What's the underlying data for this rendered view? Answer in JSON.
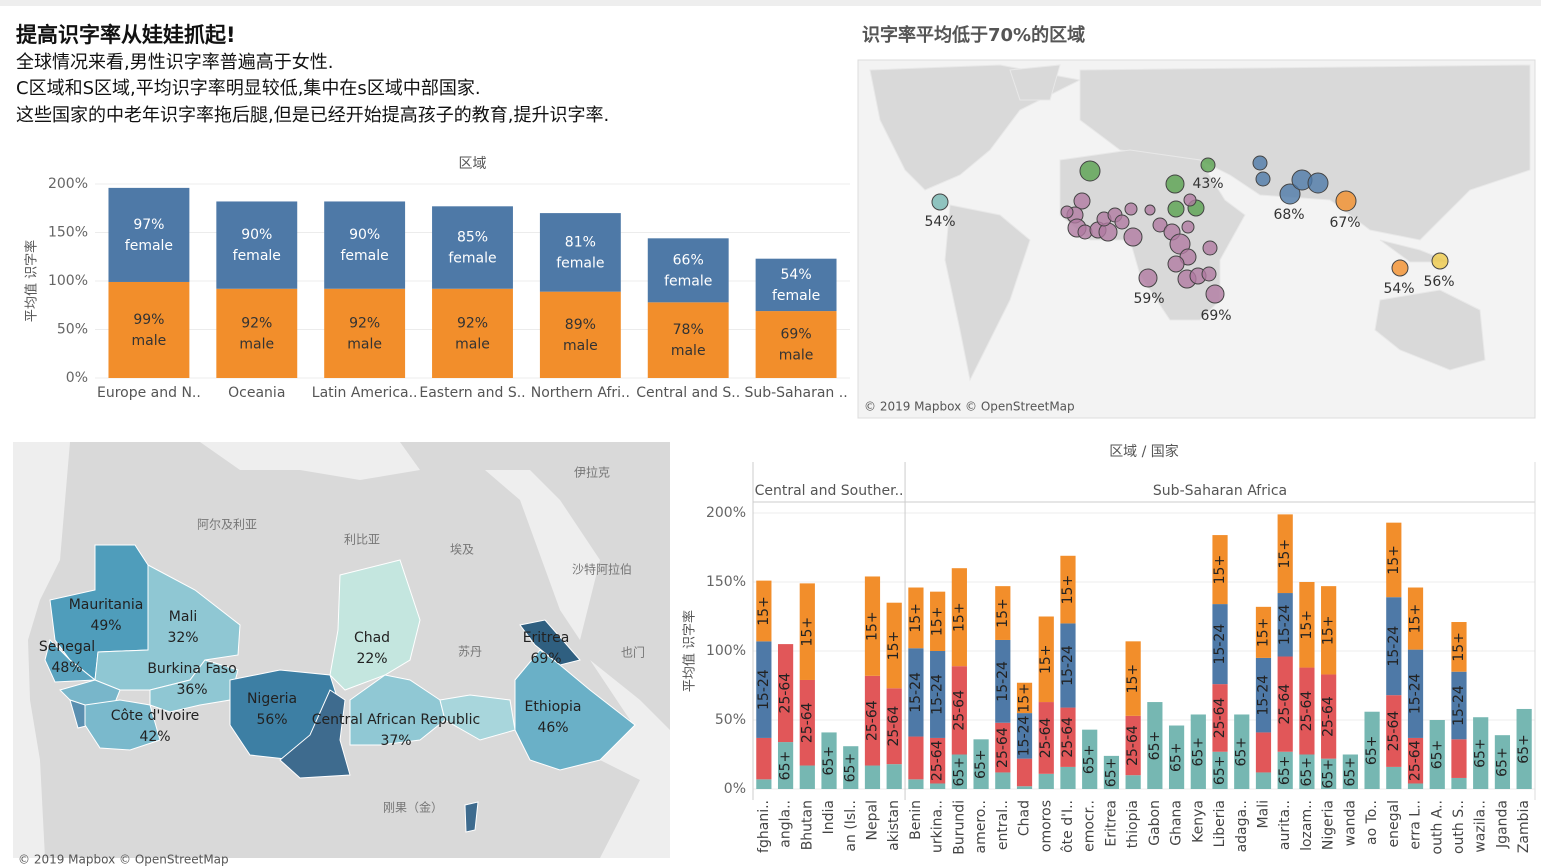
{
  "header": {
    "title": "提高识字率从娃娃抓起!",
    "lines": [
      "全球情况来看,男性识字率普遍高于女性.",
      "C区域和S区域,平均识字率明显较低,集中在s区域中部国家.",
      "这些国家的中老年识字率拖后腿,但是已经开始提高孩子的教育,提升识字率."
    ]
  },
  "chart_data": [
    {
      "type": "bar",
      "stacked": true,
      "header": "区域",
      "y_label": "平均值 识字率",
      "categories": [
        "Europe and N..",
        "Oceania",
        "Latin America..",
        "Eastern and S..",
        "Northern Afri..",
        "Central and S..",
        "Sub-Saharan .."
      ],
      "series": [
        {
          "name": "male",
          "color": "#f28e2b",
          "label_color": "#333333",
          "values": [
            99,
            92,
            92,
            92,
            89,
            78,
            69
          ],
          "value_labels": [
            "99%",
            "92%",
            "92%",
            "92%",
            "89%",
            "78%",
            "69%"
          ]
        },
        {
          "name": "female",
          "color": "#4e79a7",
          "label_color": "#ffffff",
          "values": [
            97,
            90,
            90,
            85,
            81,
            66,
            54
          ],
          "value_labels": [
            "97%",
            "90%",
            "90%",
            "85%",
            "81%",
            "66%",
            "54%"
          ]
        }
      ],
      "ylim": [
        0,
        200
      ],
      "yticks": [
        {
          "value": 0,
          "label": "0%"
        },
        {
          "value": 50,
          "label": "50%"
        },
        {
          "value": 100,
          "label": "100%"
        },
        {
          "value": 150,
          "label": "150%"
        },
        {
          "value": 200,
          "label": "200%"
        }
      ],
      "grid": true
    },
    {
      "type": "bar",
      "stacked": true,
      "header": "区域 / 国家",
      "y_label": "平均值 识字率",
      "groups": [
        {
          "name": "Central and Souther..",
          "categories": [
            "fghani..",
            "angla..",
            "Bhutan",
            "India",
            "an (Isl..",
            "Nepal",
            "akistan"
          ]
        },
        {
          "name": "Sub-Saharan Africa",
          "categories": [
            "Benin",
            "urkina..",
            "Burundi",
            "amero..",
            "entral..",
            "Chad",
            "omoros",
            "ôte d'I..",
            "emocr..",
            "Eritrea",
            "thiopia",
            "Gabon",
            "Ghana",
            "Kenya",
            "Liberia",
            "adaga..",
            "Mali",
            "aurita..",
            "lozam..",
            "Nigeria",
            "wanda",
            "ao To..",
            "enegal",
            "erra L..",
            "outh A..",
            "outh S..",
            "wazila..",
            "Jganda",
            "Zambia"
          ]
        }
      ],
      "series": [
        {
          "name": "65+",
          "color": "#76b7b2",
          "values": [
            7,
            34,
            17,
            41,
            31,
            17,
            18,
            7,
            4,
            25,
            36,
            12,
            2,
            11,
            16,
            43,
            24,
            10,
            63,
            46,
            54,
            27,
            54,
            12,
            27,
            25,
            22,
            25,
            56,
            16,
            4,
            50,
            8,
            52,
            39,
            58
          ]
        },
        {
          "name": "25-64",
          "color": "#e15759",
          "values": [
            30,
            71,
            62,
            null,
            null,
            65,
            55,
            31,
            33,
            64,
            null,
            36,
            20,
            52,
            43,
            null,
            null,
            43,
            null,
            null,
            null,
            49,
            null,
            29,
            69,
            63,
            61,
            null,
            null,
            52,
            33,
            null,
            28,
            null,
            null,
            null
          ]
        },
        {
          "name": "15-24",
          "color": "#4e79a7",
          "values": [
            70,
            null,
            null,
            null,
            null,
            null,
            null,
            64,
            63,
            null,
            null,
            60,
            33,
            null,
            61,
            null,
            null,
            null,
            null,
            null,
            null,
            58,
            null,
            54,
            46,
            null,
            null,
            null,
            null,
            71,
            64,
            null,
            49,
            null,
            null,
            null
          ]
        },
        {
          "name": "15+",
          "color": "#f28e2b",
          "values": [
            44,
            null,
            70,
            null,
            null,
            72,
            62,
            44,
            43,
            71,
            null,
            39,
            22,
            62,
            49,
            null,
            null,
            54,
            null,
            null,
            null,
            50,
            null,
            37,
            57,
            62,
            64,
            null,
            null,
            54,
            45,
            null,
            36,
            null,
            null,
            null
          ]
        }
      ],
      "ylim": [
        0,
        200
      ],
      "yticks": [
        {
          "value": 0,
          "label": "0%"
        },
        {
          "value": 50,
          "label": "50%"
        },
        {
          "value": 100,
          "label": "100%"
        },
        {
          "value": 150,
          "label": "150%"
        },
        {
          "value": 200,
          "label": "200%"
        }
      ],
      "grid": true
    }
  ],
  "region_map": {
    "title": "识字率平均低于70%的区域",
    "labels": [
      "54%",
      "43%",
      "68%",
      "67%",
      "59%",
      "69%",
      "54%",
      "56%"
    ],
    "credit": "© 2019 Mapbox © OpenStreetMap"
  },
  "africa_map": {
    "countries": [
      {
        "name": "Mauritania",
        "value": "49%"
      },
      {
        "name": "Mali",
        "value": "32%"
      },
      {
        "name": "Senegal",
        "value": "48%"
      },
      {
        "name": "Burkina Faso",
        "value": "36%"
      },
      {
        "name": "Chad",
        "value": "22%"
      },
      {
        "name": "Eritrea",
        "value": "69%"
      },
      {
        "name": "Nigeria",
        "value": "56%"
      },
      {
        "name": "Central African Republic",
        "value": "37%"
      },
      {
        "name": "Côte d'Ivoire",
        "value": "42%"
      },
      {
        "name": "Ethiopia",
        "value": "46%"
      }
    ],
    "places": [
      "阿尔及利亚",
      "利比亚",
      "埃及",
      "沙特阿拉伯",
      "伊拉克",
      "苏丹",
      "也门",
      "刚果（金）"
    ],
    "credit": "© 2019 Mapbox © OpenStreetMap"
  }
}
